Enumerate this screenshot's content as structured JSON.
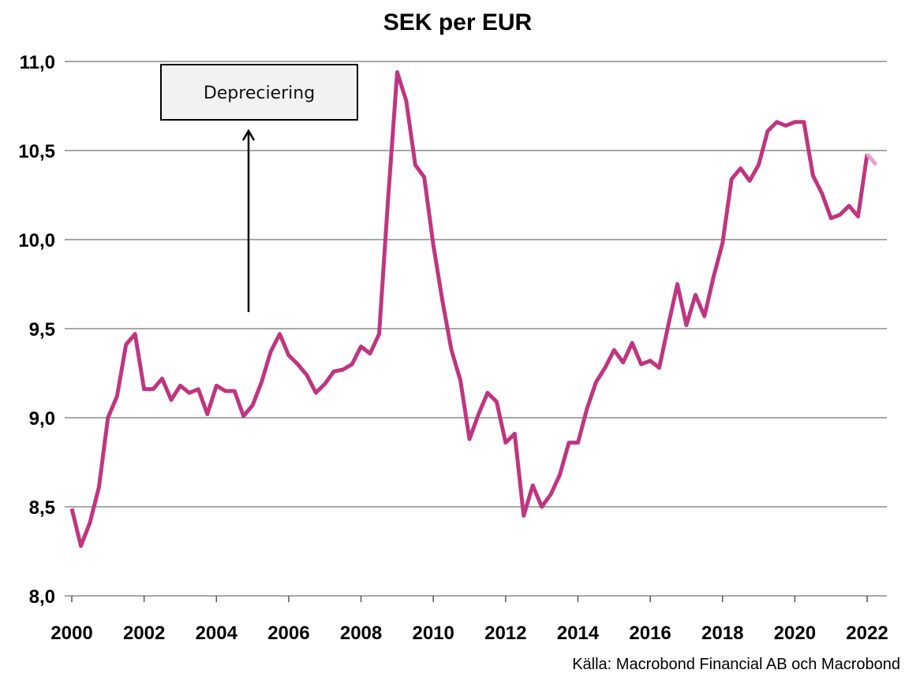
{
  "chart_data": {
    "type": "line",
    "title": "SEK per EUR",
    "source": "Källa: Macrobond Financial AB och Macrobond",
    "annotation": "Depreciering",
    "xlabel": "",
    "ylabel": "",
    "xlim": [
      2000,
      2022.6
    ],
    "ylim": [
      8.0,
      11.0
    ],
    "x_ticks": [
      "2000",
      "2002",
      "2004",
      "2006",
      "2008",
      "2010",
      "2012",
      "2014",
      "2016",
      "2018",
      "2020",
      "2022"
    ],
    "y_ticks": [
      "8,0",
      "8,5",
      "9,0",
      "9,5",
      "10,0",
      "10,5",
      "11,0"
    ],
    "grid": true,
    "legend": "none",
    "colors": {
      "series": "#c0357f",
      "series_forecast": "#e8a2c8",
      "grid": "#8a8a8a"
    },
    "series": [
      {
        "x": [
          2000.0,
          2000.25,
          2000.5,
          2000.75,
          2001.0,
          2001.25,
          2001.5,
          2001.75,
          2002.0,
          2002.25,
          2002.5,
          2002.75,
          2003.0,
          2003.25,
          2003.5,
          2003.75,
          2004.0,
          2004.25,
          2004.5,
          2004.75,
          2005.0,
          2005.25,
          2005.5,
          2005.75,
          2006.0,
          2006.25,
          2006.5,
          2006.75,
          2007.0,
          2007.25,
          2007.5,
          2007.75,
          2008.0,
          2008.25,
          2008.5,
          2008.75,
          2009.0,
          2009.25,
          2009.5,
          2009.75,
          2010.0,
          2010.25,
          2010.5,
          2010.75,
          2011.0,
          2011.25,
          2011.5,
          2011.75,
          2012.0,
          2012.25,
          2012.5,
          2012.75,
          2013.0,
          2013.25,
          2013.5,
          2013.75,
          2014.0,
          2014.25,
          2014.5,
          2014.75,
          2015.0,
          2015.25,
          2015.5,
          2015.75,
          2016.0,
          2016.25,
          2016.5,
          2016.75,
          2017.0,
          2017.25,
          2017.5,
          2017.75,
          2018.0,
          2018.25,
          2018.5,
          2018.75,
          2019.0,
          2019.25,
          2019.5,
          2019.75,
          2020.0,
          2020.25,
          2020.5,
          2020.75,
          2021.0,
          2021.25,
          2021.5,
          2021.75,
          2022.0,
          2022.25
        ],
        "values": [
          8.49,
          8.28,
          8.41,
          8.61,
          9.0,
          9.12,
          9.41,
          9.47,
          9.16,
          9.16,
          9.22,
          9.1,
          9.18,
          9.14,
          9.16,
          9.02,
          9.18,
          9.15,
          9.15,
          9.01,
          9.07,
          9.2,
          9.37,
          9.47,
          9.35,
          9.3,
          9.24,
          9.14,
          9.19,
          9.26,
          9.27,
          9.3,
          9.4,
          9.36,
          9.47,
          10.23,
          10.94,
          10.78,
          10.42,
          10.35,
          9.97,
          9.66,
          9.38,
          9.21,
          8.88,
          9.02,
          9.14,
          9.09,
          8.86,
          8.91,
          8.45,
          8.62,
          8.5,
          8.57,
          8.68,
          8.86,
          8.86,
          9.05,
          9.2,
          9.28,
          9.38,
          9.31,
          9.42,
          9.3,
          9.32,
          9.28,
          9.52,
          9.75,
          9.52,
          9.69,
          9.57,
          9.79,
          9.98,
          10.34,
          10.4,
          10.33,
          10.42,
          10.61,
          10.66,
          10.64,
          10.66,
          10.66,
          10.36,
          10.26,
          10.12,
          10.14,
          10.19,
          10.13,
          10.48,
          10.42
        ]
      }
    ]
  }
}
